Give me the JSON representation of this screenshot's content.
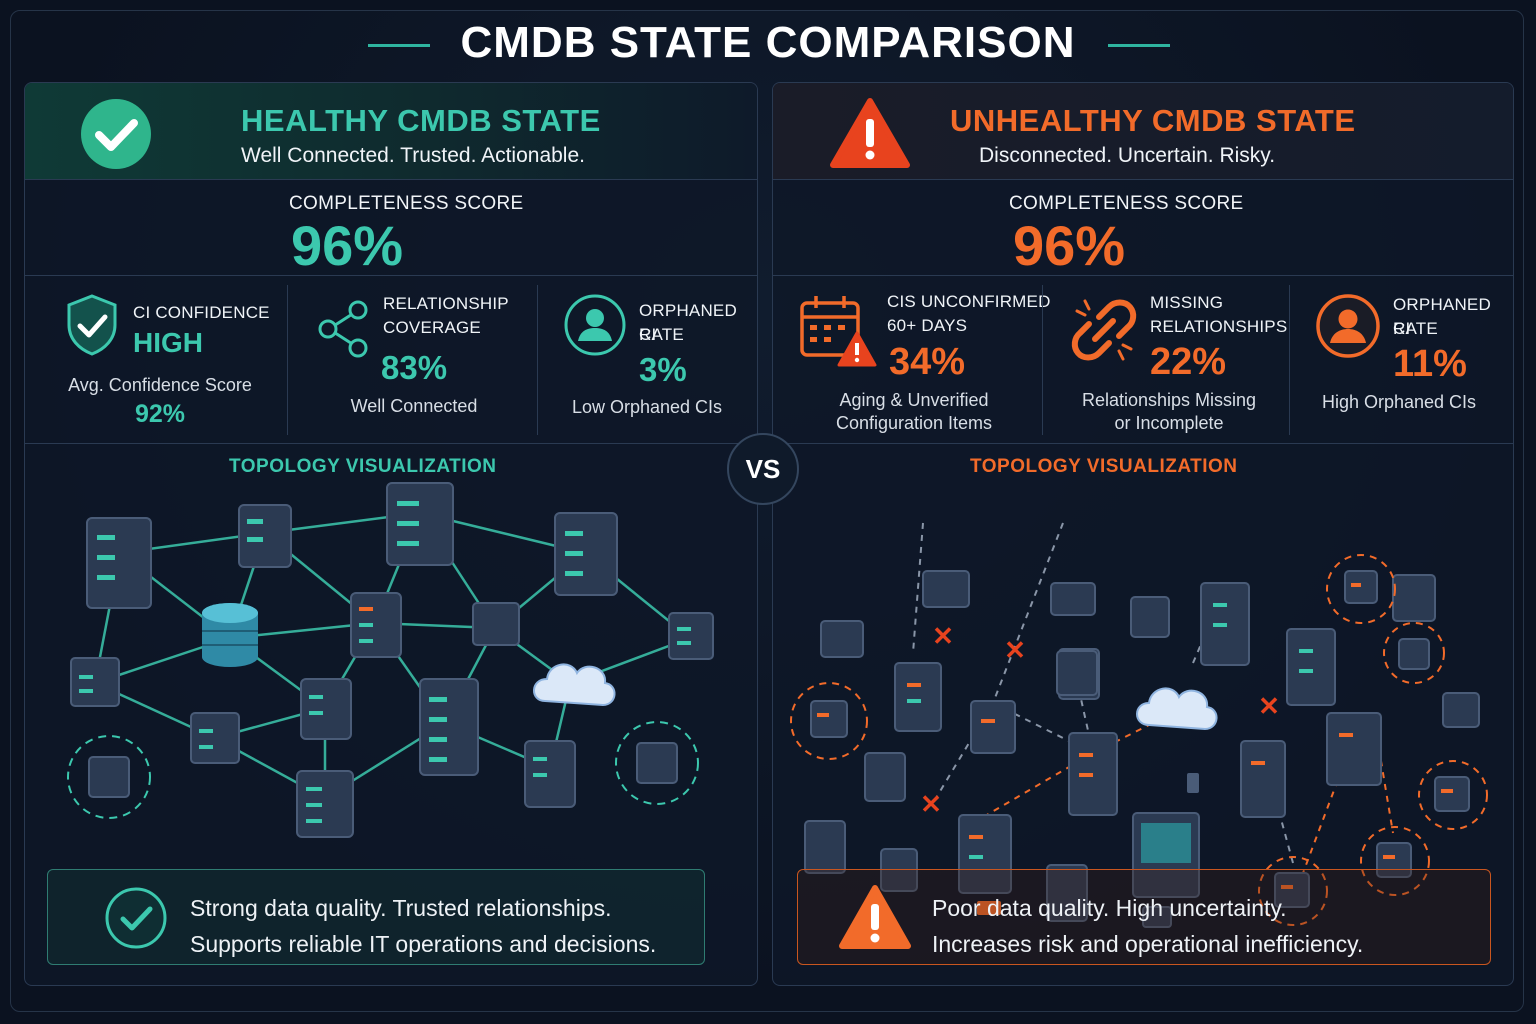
{
  "title": "CMDB STATE COMPARISON",
  "vs_label": "VS",
  "colors": {
    "healthy_accent": "#3cc8ae",
    "unhealthy_accent": "#f26b2a",
    "background": "#0b1220"
  },
  "healthy": {
    "icon": "check-circle-icon",
    "title": "HEALTHY CMDB STATE",
    "subtitle": "Well Connected. Trusted. Actionable.",
    "completeness_label": "COMPLETENESS SCORE",
    "completeness_value": "96%",
    "metrics": [
      {
        "icon": "shield-check-icon",
        "label_lines": [
          "CI CONFIDENCE"
        ],
        "value": "HIGH",
        "desc": "Avg. Confidence Score",
        "sub_value": "92%"
      },
      {
        "icon": "share-nodes-icon",
        "label_lines": [
          "RELATIONSHIP",
          "COVERAGE"
        ],
        "value": "83%",
        "desc": "Well Connected"
      },
      {
        "icon": "user-circle-icon",
        "label_lines": [
          "ORPHANED CI",
          "RATE"
        ],
        "value": "3%",
        "desc": "Low Orphaned CIs"
      }
    ],
    "topology_title": "TOPOLOGY VISUALIZATION",
    "footer_icon": "check-circle-icon",
    "footer_lines": [
      "Strong data quality. Trusted relationships.",
      "Supports reliable IT operations and decisions."
    ]
  },
  "unhealthy": {
    "icon": "warning-triangle-icon",
    "title": "UNHEALTHY CMDB STATE",
    "subtitle": "Disconnected. Uncertain. Risky.",
    "completeness_label": "COMPLETENESS SCORE",
    "completeness_value": "96%",
    "metrics": [
      {
        "icon": "calendar-warning-icon",
        "label_lines": [
          "CIS UNCONFIRMED",
          "60+ DAYS"
        ],
        "value": "34%",
        "desc_lines": [
          "Aging & Unverified",
          "Configuration Items"
        ]
      },
      {
        "icon": "broken-link-icon",
        "label_lines": [
          "MISSING",
          "RELATIONSHIPS"
        ],
        "value": "22%",
        "desc_lines": [
          "Relationships Missing",
          "or Incomplete"
        ]
      },
      {
        "icon": "user-circle-icon",
        "label_lines": [
          "ORPHANED CI",
          "RATE"
        ],
        "value": "11%",
        "desc_lines": [
          "High Orphaned CIs"
        ]
      }
    ],
    "topology_title": "TOPOLOGY VISUALIZATION",
    "footer_icon": "warning-triangle-icon",
    "footer_lines": [
      "Poor data quality. High uncertainty.",
      "Increases risk and operational inefficiency."
    ]
  }
}
